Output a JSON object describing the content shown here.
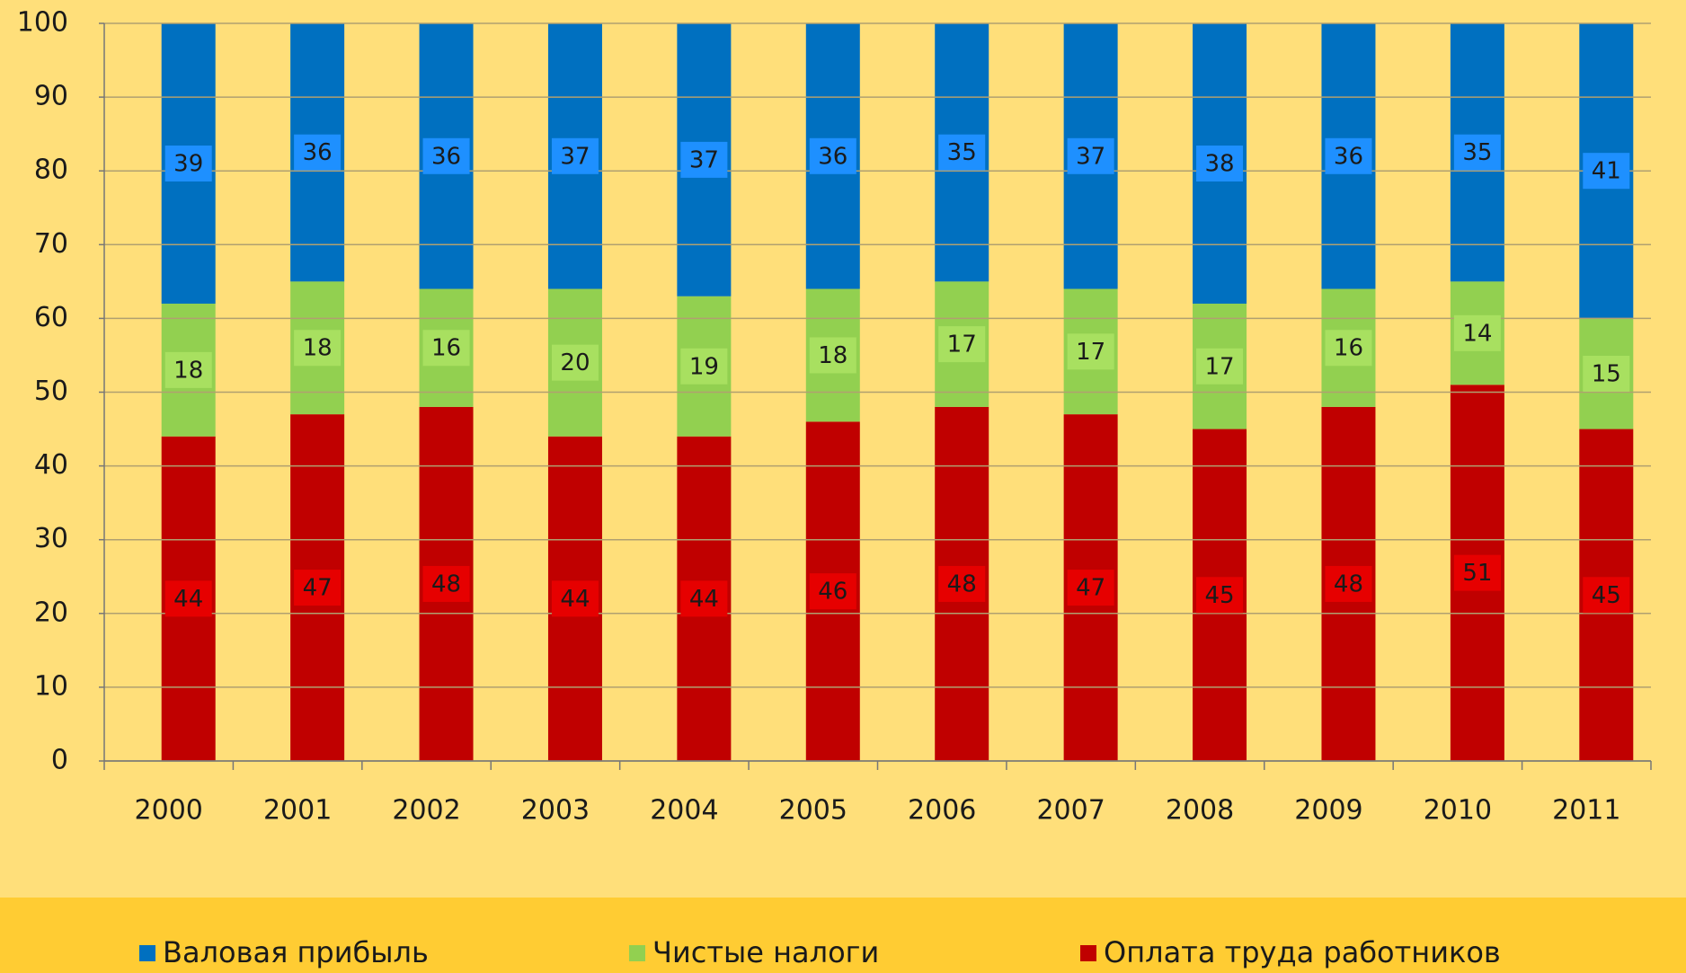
{
  "chart_data": {
    "type": "stacked_bar",
    "categories": [
      "2000",
      "2001",
      "2002",
      "2003",
      "2004",
      "2005",
      "2006",
      "2007",
      "2008",
      "2009",
      "2010",
      "2011"
    ],
    "series": [
      {
        "name": "Оплата труда работников",
        "color": "#c00000",
        "values": [
          44,
          47,
          48,
          44,
          44,
          46,
          48,
          47,
          45,
          48,
          51,
          45
        ]
      },
      {
        "name": "Чистые налоги",
        "color": "#92d050",
        "values": [
          18,
          18,
          16,
          20,
          19,
          18,
          17,
          17,
          17,
          16,
          14,
          15
        ]
      },
      {
        "name": "Валовая прибыль",
        "color": "#0070c0",
        "values": [
          39,
          36,
          36,
          37,
          37,
          36,
          35,
          37,
          38,
          36,
          35,
          41
        ]
      }
    ],
    "ylim": [
      0,
      100
    ],
    "yticks": [
      0,
      10,
      20,
      30,
      40,
      50,
      60,
      70,
      80,
      90,
      100
    ],
    "grid": true,
    "legend": "bottom"
  }
}
